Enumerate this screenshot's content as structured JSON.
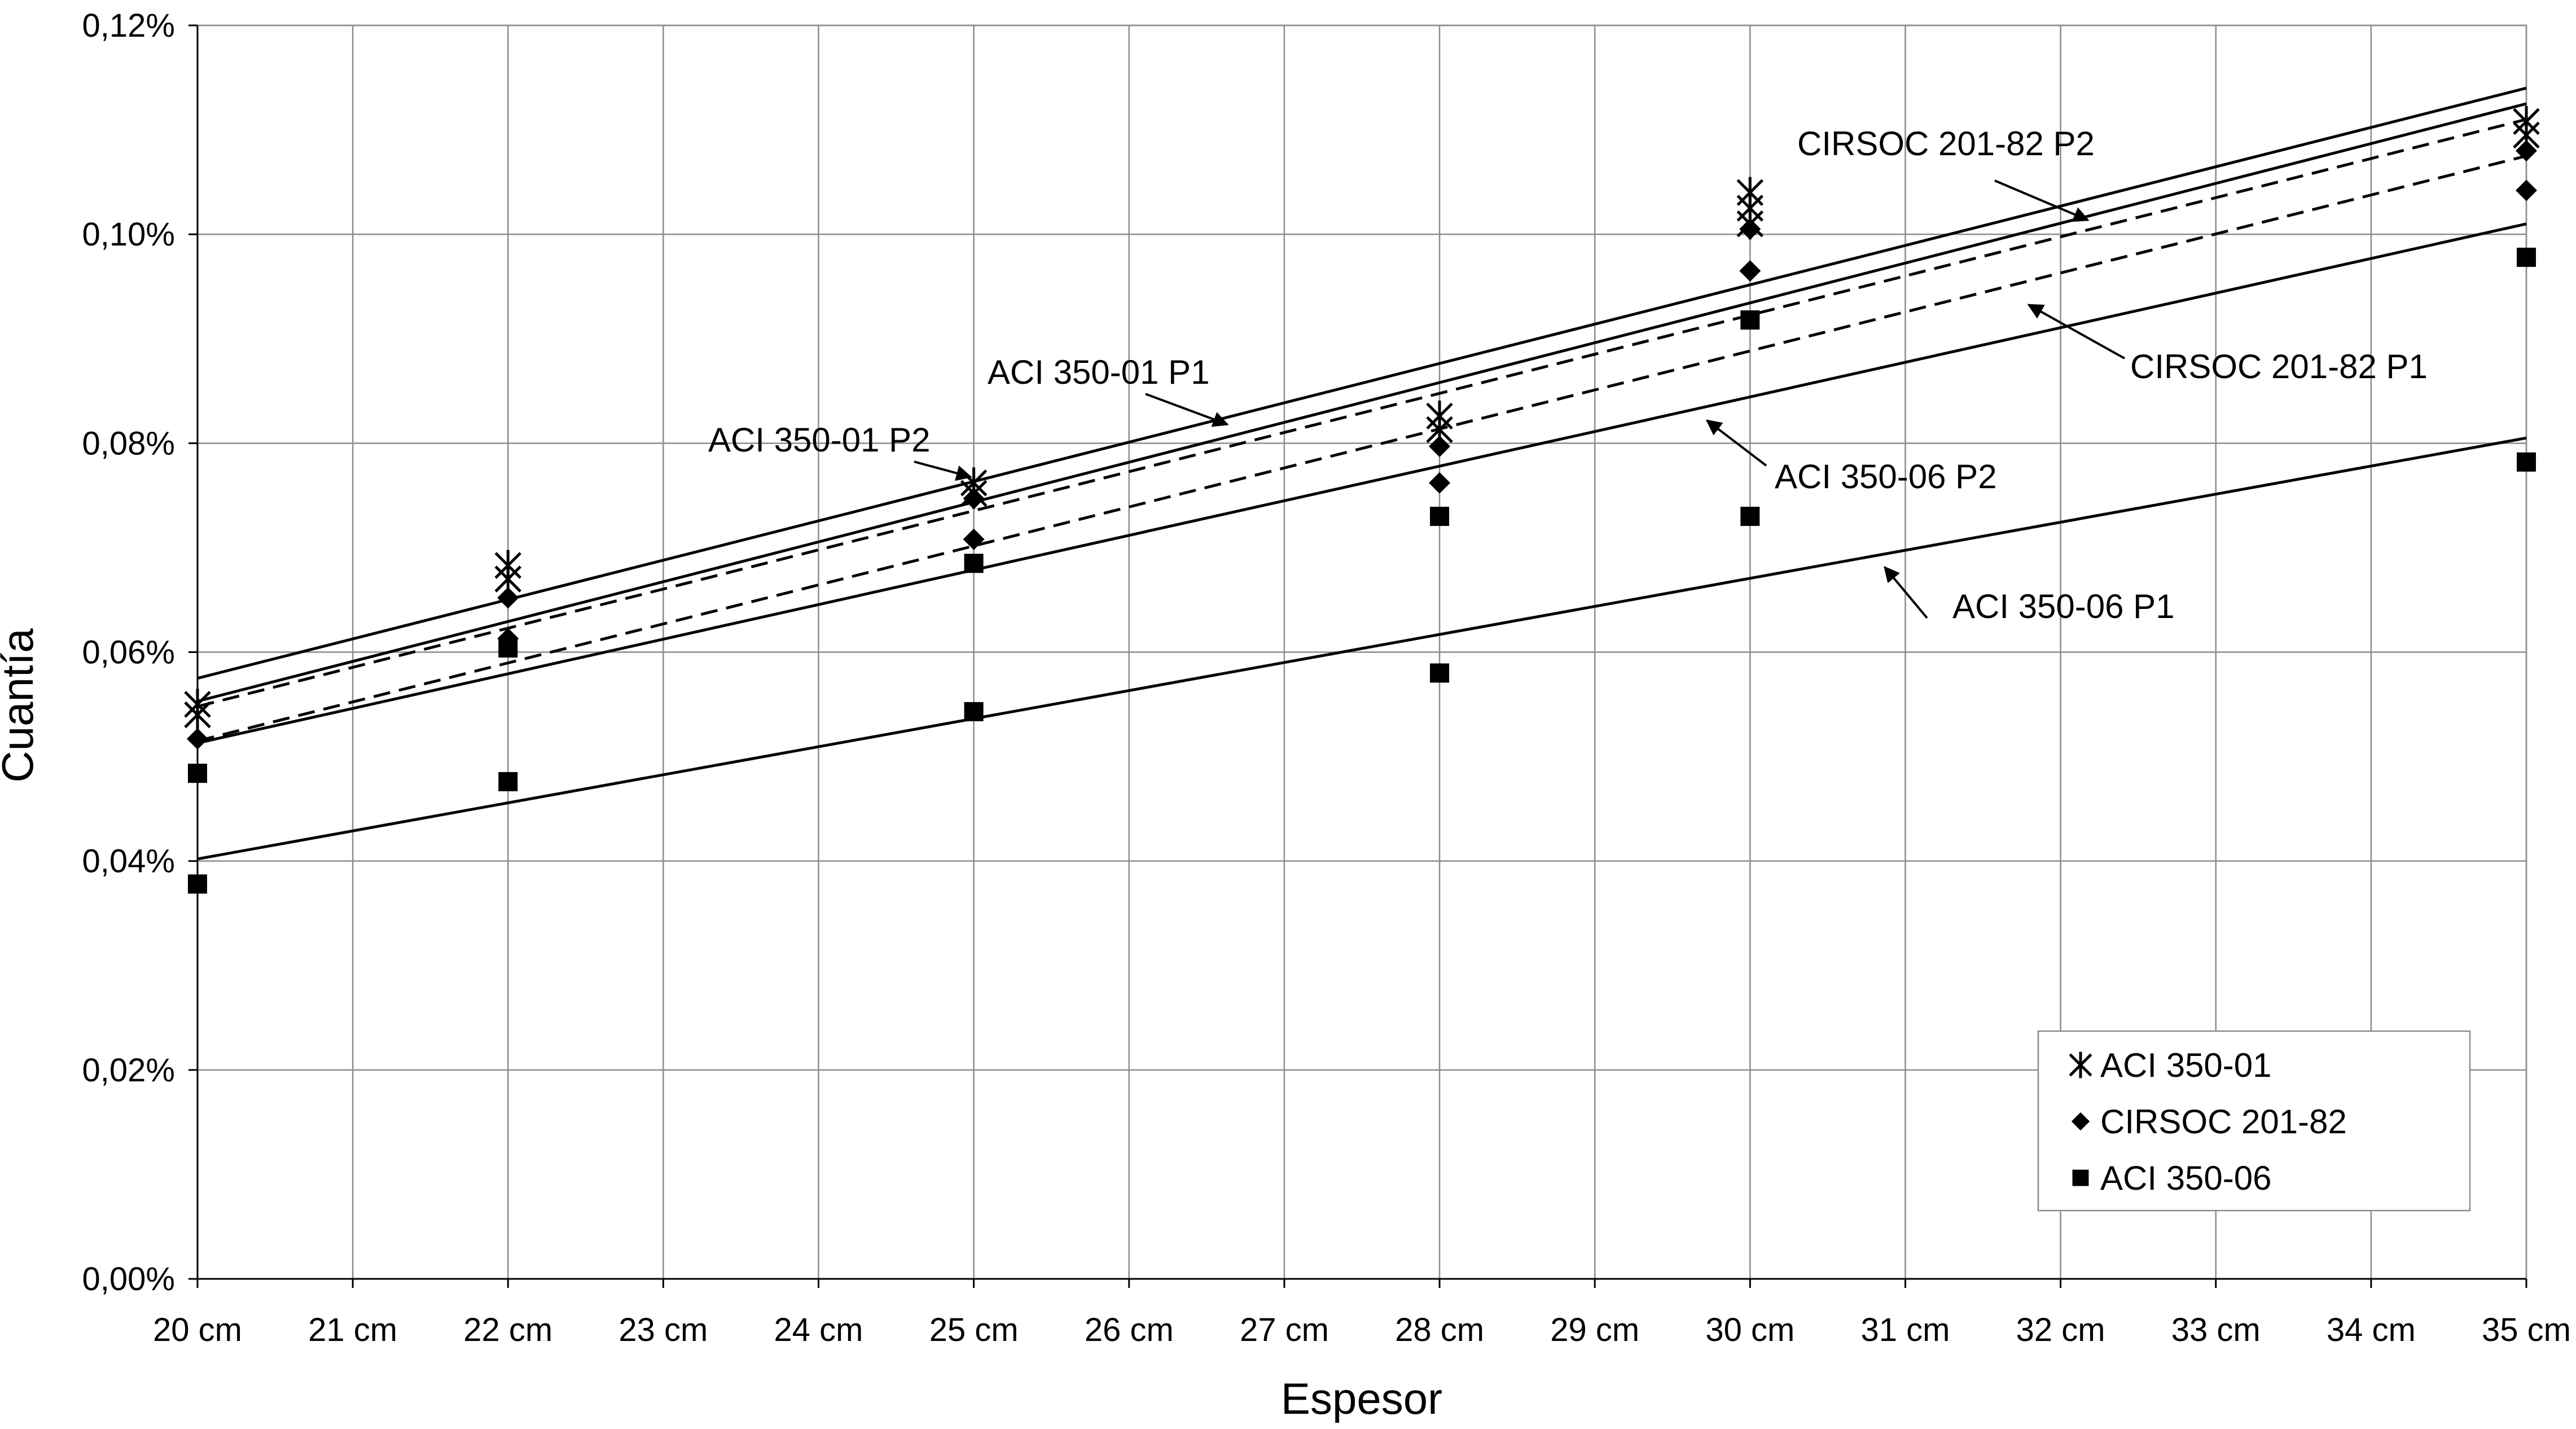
{
  "chart_data": {
    "type": "scatter",
    "xlabel": "Espesor",
    "ylabel": "Cuantía",
    "xlim": [
      20,
      35
    ],
    "ylim": [
      0,
      0.12
    ],
    "x_ticks": [
      "20 cm",
      "21 cm",
      "22 cm",
      "23 cm",
      "24 cm",
      "25 cm",
      "26 cm",
      "27 cm",
      "28 cm",
      "29 cm",
      "30 cm",
      "31 cm",
      "32 cm",
      "33 cm",
      "34 cm",
      "35 cm"
    ],
    "y_ticks": [
      "0,00%",
      "0,02%",
      "0,04%",
      "0,06%",
      "0,08%",
      "0,10%",
      "0,12%"
    ],
    "grid": true,
    "legend_position": "bottom-right",
    "series": [
      {
        "name": "ACI 350-01",
        "marker": "star",
        "points": [
          [
            20,
            0.054
          ],
          [
            20,
            0.055
          ],
          [
            22,
            0.067
          ],
          [
            22,
            0.0683
          ],
          [
            25,
            0.0752
          ],
          [
            25,
            0.0762
          ],
          [
            28,
            0.0813
          ],
          [
            28,
            0.0826
          ],
          [
            30,
            0.101
          ],
          [
            30,
            0.1025
          ],
          [
            30,
            0.104
          ],
          [
            35,
            0.1095
          ],
          [
            35,
            0.1108
          ]
        ]
      },
      {
        "name": "CIRSOC 201-82",
        "marker": "diamond",
        "points": [
          [
            20,
            0.0517
          ],
          [
            22,
            0.0613
          ],
          [
            22,
            0.0652
          ],
          [
            25,
            0.0708
          ],
          [
            25,
            0.0747
          ],
          [
            28,
            0.0762
          ],
          [
            28,
            0.0797
          ],
          [
            30,
            0.0965
          ],
          [
            30,
            0.1005
          ],
          [
            35,
            0.1042
          ],
          [
            35,
            0.108
          ]
        ]
      },
      {
        "name": "ACI 350-06",
        "marker": "square",
        "points": [
          [
            20,
            0.0378
          ],
          [
            20,
            0.0484
          ],
          [
            22,
            0.0476
          ],
          [
            22,
            0.0604
          ],
          [
            25,
            0.0543
          ],
          [
            25,
            0.0685
          ],
          [
            28,
            0.058
          ],
          [
            28,
            0.073
          ],
          [
            30,
            0.073
          ],
          [
            30,
            0.0918
          ],
          [
            35,
            0.0782
          ],
          [
            35,
            0.0978
          ]
        ]
      }
    ],
    "trend_lines": [
      {
        "name": "ACI 350-01 P1",
        "style": "solid",
        "y_start": 0.0553,
        "y_end": 0.1125
      },
      {
        "name": "ACI 350-01 P2",
        "style": "solid",
        "y_start": 0.0575,
        "y_end": 0.114
      },
      {
        "name": "CIRSOC 201-82 P2",
        "style": "dashed",
        "y_start": 0.0548,
        "y_end": 0.111
      },
      {
        "name": "CIRSOC 201-82 P1",
        "style": "dashed",
        "y_start": 0.0515,
        "y_end": 0.1075
      },
      {
        "name": "ACI 350-06 P2",
        "style": "solid",
        "y_start": 0.0513,
        "y_end": 0.101
      },
      {
        "name": "ACI 350-06 P1",
        "style": "solid",
        "y_start": 0.0402,
        "y_end": 0.0805
      }
    ],
    "annotations": [
      {
        "text": "ACI 350-01 P1",
        "target": "ACI 350-01 P1",
        "at_x": 26.6
      },
      {
        "text": "ACI 350-01 P2",
        "target": "ACI 350-01 P2",
        "at_x": 25.0
      },
      {
        "text": "CIRSOC 201-82 P2",
        "target": "CIRSOC 201-82 P2",
        "at_x": 32.2
      },
      {
        "text": "CIRSOC 201-82 P1",
        "target": "CIRSOC 201-82 P1",
        "at_x": 31.8
      },
      {
        "text": "ACI 350-06 P2",
        "target": "ACI 350-06 P2",
        "at_x": 29.7
      },
      {
        "text": "ACI 350-06 P1",
        "target": "ACI 350-06 P1",
        "at_x": 30.9
      }
    ]
  }
}
